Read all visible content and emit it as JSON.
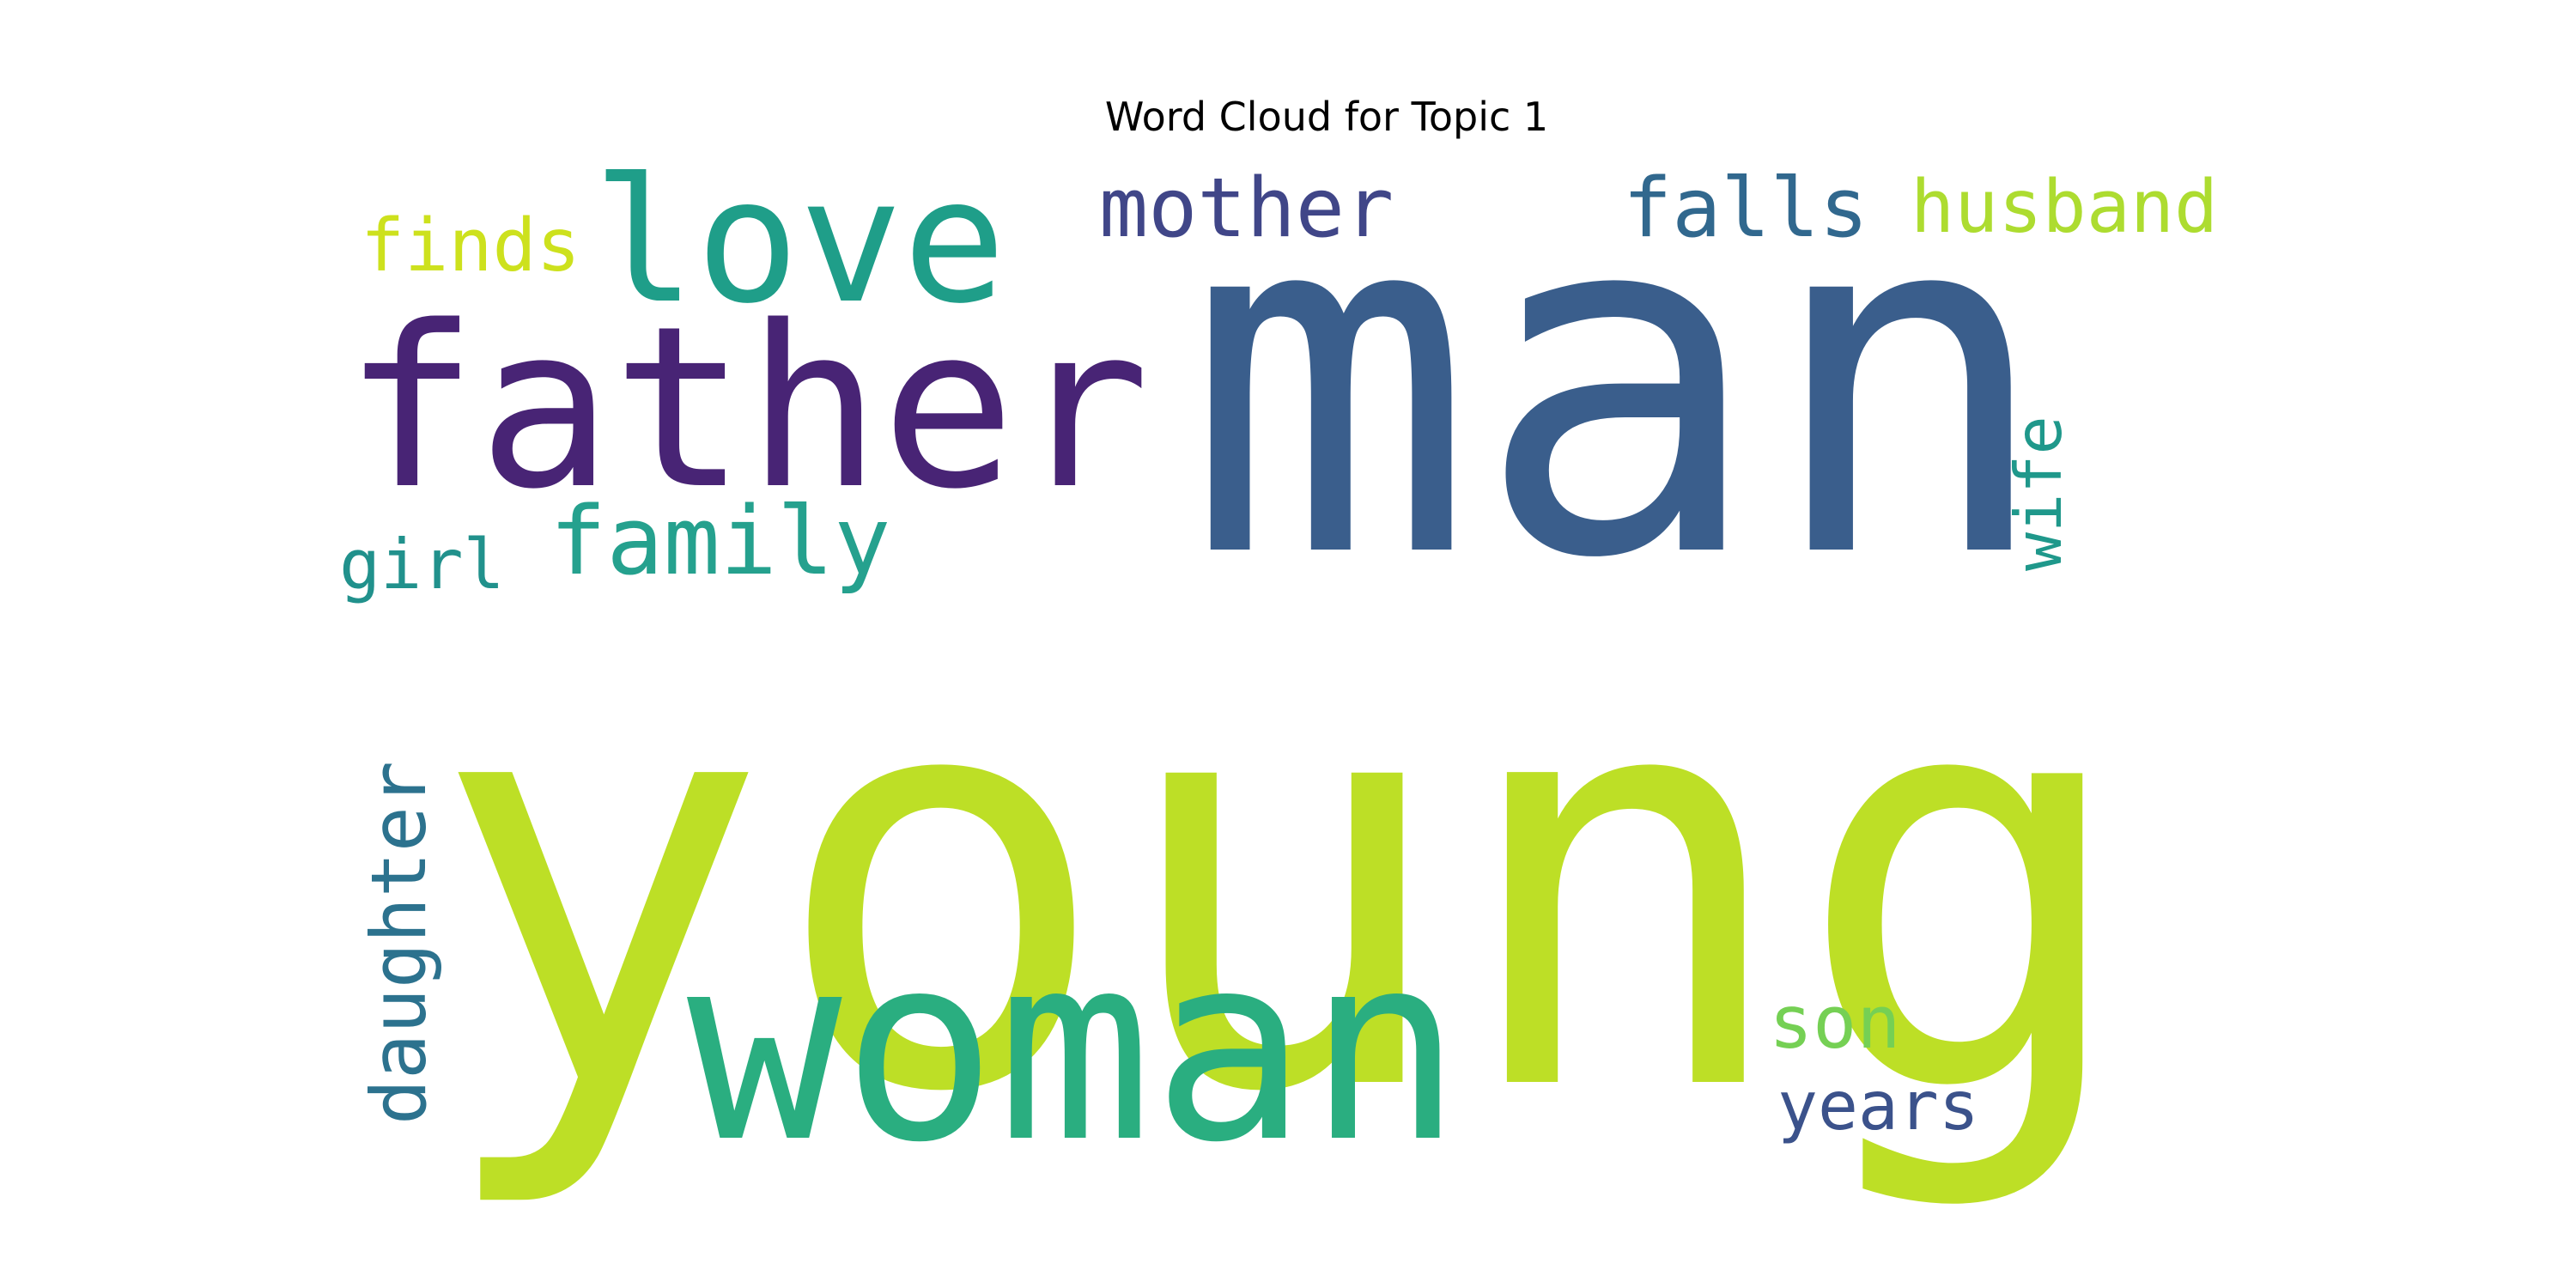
{
  "title": "Word Cloud for Topic 1",
  "words": [
    {
      "text": "young",
      "color": "#bddf26",
      "orientation": "horizontal"
    },
    {
      "text": "man",
      "color": "#3a5e8c",
      "orientation": "horizontal"
    },
    {
      "text": "woman",
      "color": "#2aae80",
      "orientation": "horizontal"
    },
    {
      "text": "father",
      "color": "#482475",
      "orientation": "horizontal"
    },
    {
      "text": "love",
      "color": "#1f9e89",
      "orientation": "horizontal"
    },
    {
      "text": "family",
      "color": "#25a18e",
      "orientation": "horizontal"
    },
    {
      "text": "mother",
      "color": "#404688",
      "orientation": "horizontal"
    },
    {
      "text": "falls",
      "color": "#31688e",
      "orientation": "horizontal"
    },
    {
      "text": "husband",
      "color": "#addc30",
      "orientation": "horizontal"
    },
    {
      "text": "finds",
      "color": "#cde11d",
      "orientation": "horizontal"
    },
    {
      "text": "girl",
      "color": "#21918c",
      "orientation": "horizontal"
    },
    {
      "text": "wife",
      "color": "#1f988b",
      "orientation": "vertical"
    },
    {
      "text": "daughter",
      "color": "#2c728e",
      "orientation": "vertical"
    },
    {
      "text": "son",
      "color": "#75d054",
      "orientation": "horizontal"
    },
    {
      "text": "years",
      "color": "#3b528b",
      "orientation": "horizontal"
    }
  ]
}
